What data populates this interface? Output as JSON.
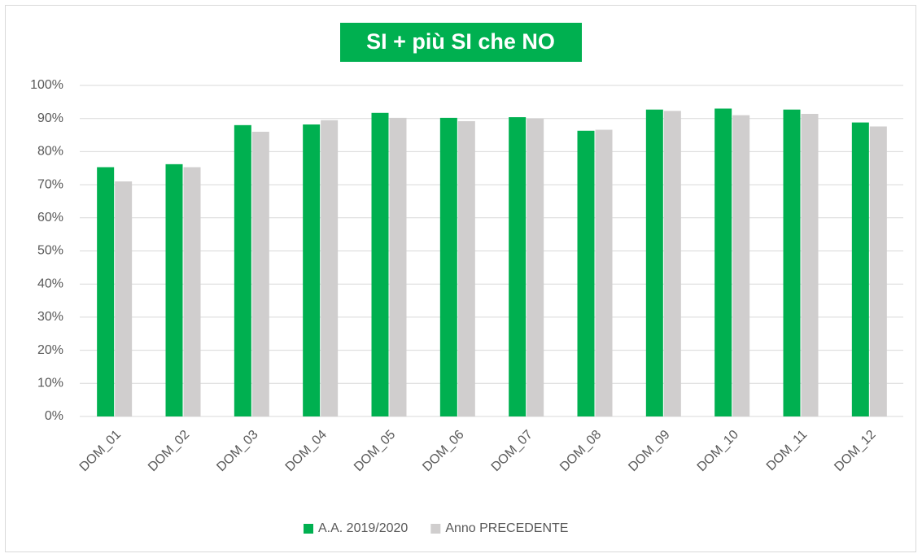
{
  "chart_data": {
    "type": "bar",
    "title": "SI + più SI che NO",
    "categories": [
      "DOM_01",
      "DOM_02",
      "DOM_03",
      "DOM_04",
      "DOM_05",
      "DOM_06",
      "DOM_07",
      "DOM_08",
      "DOM_09",
      "DOM_10",
      "DOM_11",
      "DOM_12"
    ],
    "series": [
      {
        "name": "A.A. 2019/2020",
        "color": "#00b050",
        "values": [
          75.3,
          76.2,
          88,
          88.2,
          91.7,
          90.2,
          90.4,
          86.3,
          92.7,
          93,
          92.7,
          88.8
        ]
      },
      {
        "name": "Anno PRECEDENTE",
        "color": "#d0cece",
        "values": [
          71,
          75.3,
          86,
          89.5,
          90.2,
          89.2,
          90,
          86.6,
          92.3,
          91,
          91.4,
          87.6
        ]
      }
    ],
    "ylim": [
      0,
      100
    ],
    "yticks": [
      {
        "value": 0,
        "label": "0%"
      },
      {
        "value": 10,
        "label": "10%"
      },
      {
        "value": 20,
        "label": "20%"
      },
      {
        "value": 30,
        "label": "30%"
      },
      {
        "value": 40,
        "label": "40%"
      },
      {
        "value": 50,
        "label": "50%"
      },
      {
        "value": 60,
        "label": "60%"
      },
      {
        "value": 70,
        "label": "70%"
      },
      {
        "value": 80,
        "label": "80%"
      },
      {
        "value": 90,
        "label": "90%"
      },
      {
        "value": 100,
        "label": "100%"
      }
    ],
    "grid": true,
    "legend": "bottom",
    "title_color": "#00b050"
  }
}
